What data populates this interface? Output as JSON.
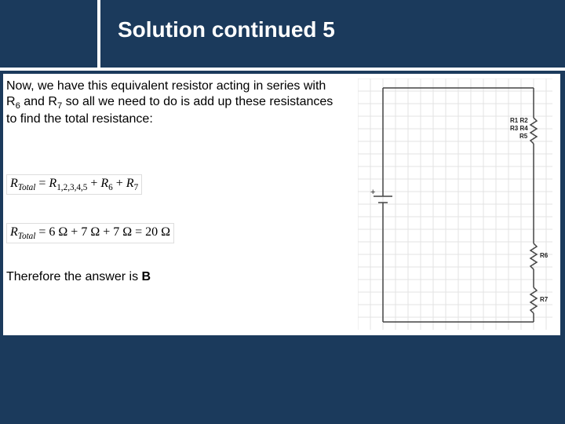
{
  "title": "Solution continued 5",
  "paragraph_html": "Now, we have this equivalent resistor acting in series with R<sub>6</sub> and R<sub>7</sub> so all we need to do is add up these resistances to find the total resistance:",
  "equation1_html": "<i>R</i><sub><i>Total</i></sub> = <i>R</i><sub>1,2,3,4,5</sub> + <i>R</i><sub>6</sub> + <i>R</i><sub>7</sub>",
  "equation2_html": "<i>R</i><sub><i>Total</i></sub> = 6 Ω + 7 Ω + 7 Ω = 20 Ω",
  "answer_prefix": "Therefore the answer is ",
  "answer_letter": "B",
  "circuit": {
    "labels": {
      "group1": "R1 R2",
      "group2": "R3 R4",
      "group3": "R5",
      "r6": "R6",
      "r7": "R7",
      "plus": "+"
    },
    "grid": {
      "cols": 16,
      "rows": 20,
      "spacing": 16
    },
    "colors": {
      "wire": "#444444",
      "grid": "#e3e3e3",
      "background": "#ffffff"
    }
  },
  "colors": {
    "page_bg": "#1b3a5c",
    "content_bg": "#ffffff",
    "rule": "#ffffff",
    "text": "#000000",
    "title": "#ffffff"
  }
}
